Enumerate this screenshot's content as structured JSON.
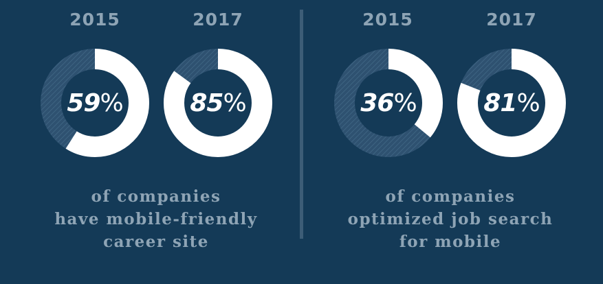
{
  "colors": {
    "background": "#143a57",
    "filled": "#ffffff",
    "remaining": "#2e5170",
    "hatch": "#3e6482",
    "text_muted": "#8ea4b5",
    "divider": "#3d5d77"
  },
  "chart_data": [
    {
      "type": "donut",
      "series": [
        {
          "category": "2015",
          "value": 59,
          "display_value": "59",
          "unit": "%"
        },
        {
          "category": "2017",
          "value": 85,
          "display_value": "85",
          "unit": "%"
        }
      ],
      "caption_lines": [
        "of companies",
        "have mobile-friendly",
        "career site"
      ]
    },
    {
      "type": "donut",
      "series": [
        {
          "category": "2015",
          "value": 36,
          "display_value": "36",
          "unit": "%"
        },
        {
          "category": "2017",
          "value": 81,
          "display_value": "81",
          "unit": "%"
        }
      ],
      "caption_lines": [
        "of companies",
        "optimized job search",
        "for mobile"
      ]
    }
  ]
}
